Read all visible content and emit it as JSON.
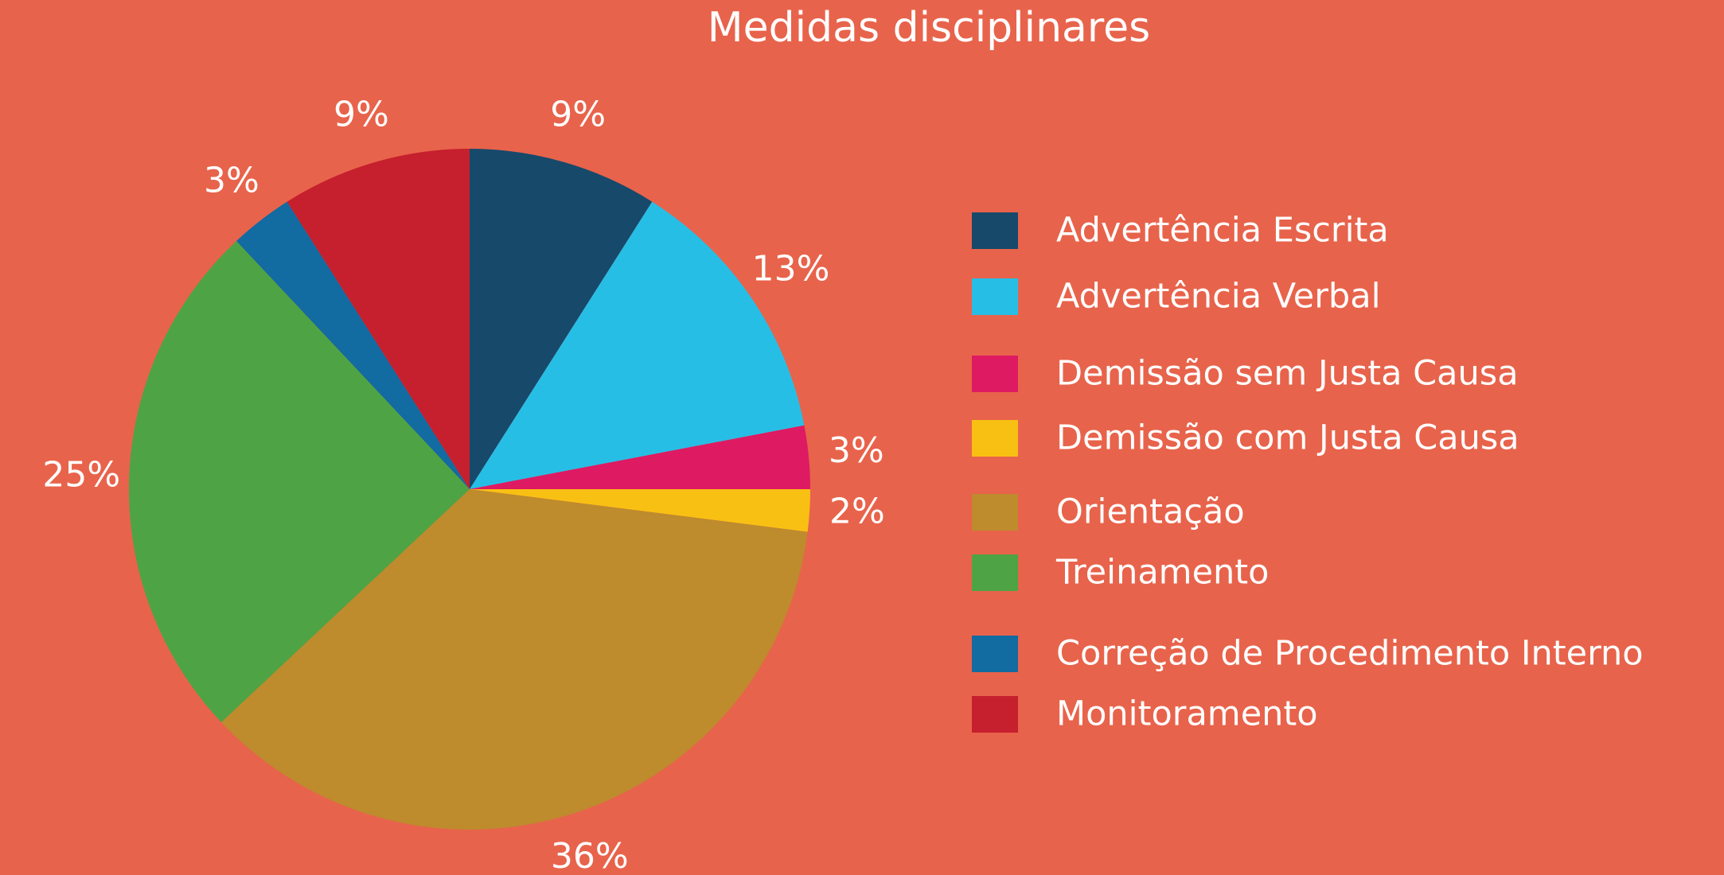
{
  "chart_data": {
    "type": "pie",
    "title": "Medidas disciplinares",
    "categories": [
      "Advertência Escrita",
      "Advertência Verbal",
      "Demissão sem Justa Causa",
      "Demissão com Justa Causa",
      "Orientação",
      "Treinamento",
      "Correção de Procedimento Interno",
      "Monitoramento"
    ],
    "values": [
      9,
      13,
      3,
      2,
      36,
      25,
      3,
      9
    ],
    "value_labels": [
      "9%",
      "13%",
      "3%",
      "2%",
      "36%",
      "25%",
      "3%",
      "9%"
    ],
    "colors": [
      "#17496b",
      "#27bee6",
      "#de1a63",
      "#f9c014",
      "#be8b2d",
      "#4ea444",
      "#126ba1",
      "#c61f2e"
    ],
    "legend": "right"
  }
}
